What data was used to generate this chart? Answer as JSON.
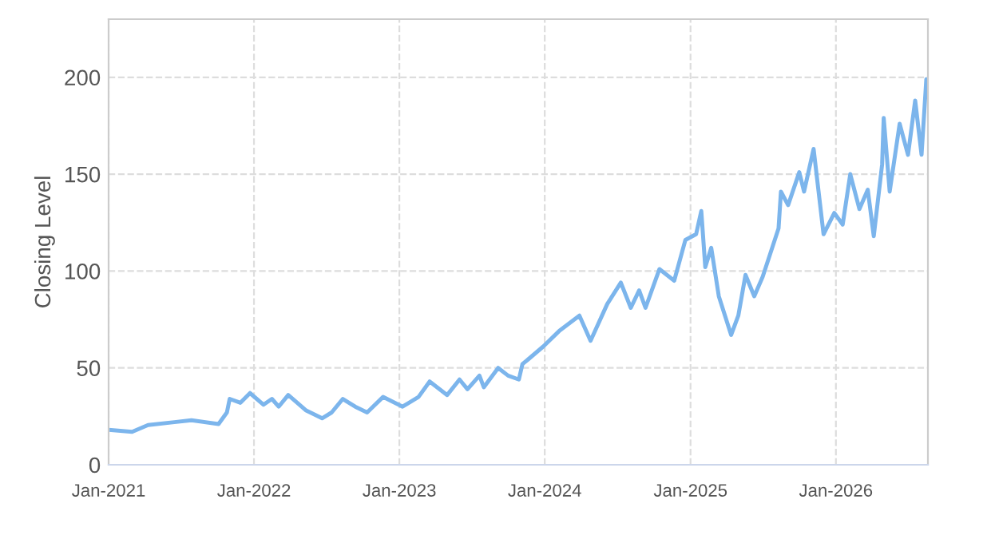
{
  "chart_data": {
    "type": "line",
    "ylabel": "Closing Level",
    "x": [
      "2021-01-01",
      "2021-03-01",
      "2021-04-10",
      "2021-06-15",
      "2021-07-28",
      "2021-10-04",
      "2021-10-25",
      "2021-11-01",
      "2021-11-28",
      "2021-12-22",
      "2022-01-25",
      "2022-02-15",
      "2022-03-04",
      "2022-03-28",
      "2022-05-12",
      "2022-06-21",
      "2022-07-15",
      "2022-08-12",
      "2022-09-12",
      "2022-10-12",
      "2022-11-21",
      "2023-01-09",
      "2023-02-18",
      "2023-03-18",
      "2023-05-01",
      "2023-06-01",
      "2023-06-21",
      "2023-07-21",
      "2023-08-01",
      "2023-09-06",
      "2023-10-01",
      "2023-10-28",
      "2023-11-06",
      "2023-11-18",
      "2023-12-28",
      "2024-02-06",
      "2024-03-28",
      "2024-04-25",
      "2024-06-06",
      "2024-07-10",
      "2024-08-04",
      "2024-08-25",
      "2024-09-10",
      "2024-10-15",
      "2024-11-21",
      "2024-12-19",
      "2025-01-15",
      "2025-01-28",
      "2025-02-07",
      "2025-02-22",
      "2025-03-13",
      "2025-04-13",
      "2025-05-01",
      "2025-05-19",
      "2025-06-10",
      "2025-07-01",
      "2025-08-10",
      "2025-08-16",
      "2025-09-03",
      "2025-10-01",
      "2025-10-13",
      "2025-11-06",
      "2025-12-01",
      "2025-12-28",
      "2026-01-18",
      "2026-02-06",
      "2026-03-01",
      "2026-03-22",
      "2026-04-06",
      "2026-04-27",
      "2026-05-01",
      "2026-05-16",
      "2026-06-10",
      "2026-07-01",
      "2026-07-19",
      "2026-08-04",
      "2026-08-16"
    ],
    "series": [
      {
        "color": "#7cb5ec",
        "values": [
          18,
          17,
          20.5,
          22,
          23,
          21,
          27,
          34,
          32,
          37,
          31,
          34,
          30,
          36,
          28,
          24,
          27,
          34,
          30,
          27,
          35,
          30,
          35,
          43,
          36,
          44,
          39,
          46,
          40,
          50,
          46,
          44,
          52,
          54,
          61,
          69,
          77,
          64,
          83,
          94,
          81,
          90,
          81,
          101,
          95,
          116,
          119,
          131,
          102,
          112,
          87,
          67,
          77,
          98,
          87,
          97,
          122,
          141,
          134,
          151,
          141,
          163,
          119,
          130,
          124,
          150,
          132,
          142,
          118,
          155,
          179,
          141,
          176,
          160,
          188,
          160,
          199
        ]
      }
    ],
    "xlim": [
      "2021-01-01",
      "2026-08-20"
    ],
    "xticks": [
      {
        "value": "2021-01-01",
        "label": "Jan-2021"
      },
      {
        "value": "2022-01-01",
        "label": "Jan-2022"
      },
      {
        "value": "2023-01-01",
        "label": "Jan-2023"
      },
      {
        "value": "2024-01-01",
        "label": "Jan-2024"
      },
      {
        "value": "2025-01-01",
        "label": "Jan-2025"
      },
      {
        "value": "2026-01-01",
        "label": "Jan-2026"
      }
    ],
    "ylim": [
      0,
      230
    ],
    "yticks": [
      0,
      50,
      100,
      150,
      200
    ],
    "grid": true,
    "line_style": "solid"
  }
}
